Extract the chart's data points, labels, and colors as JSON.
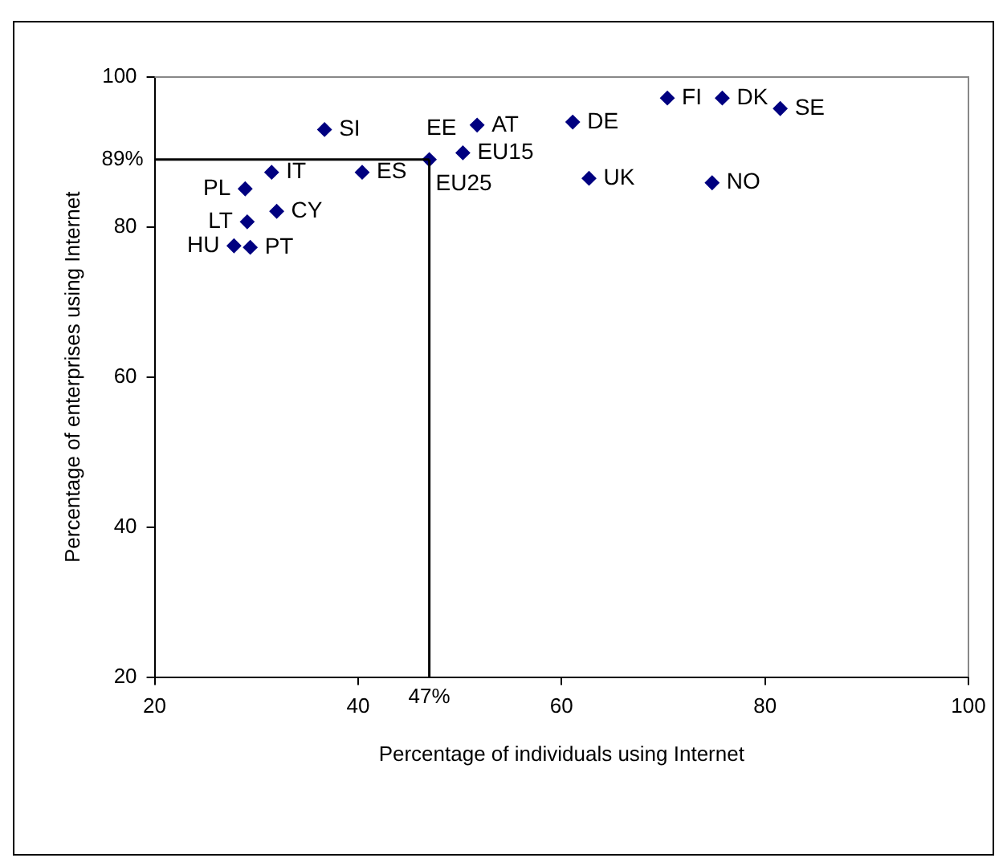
{
  "chart_data": {
    "type": "scatter",
    "xlabel": "Percentage of individuals using Internet",
    "ylabel": "Percentage of enterprises using Internet",
    "x": [
      36.7,
      51.7,
      61.1,
      70.4,
      75.8,
      81.5,
      47,
      50.3,
      62.7,
      74.8,
      31.5,
      40.4,
      28.9,
      32,
      29.1,
      27.8,
      29.4
    ],
    "series": [
      {
        "color": "#000080",
        "values": [
          93,
          93.6,
          94,
          97.2,
          97.2,
          95.8,
          89,
          89.9,
          86.5,
          85.9,
          87.3,
          87.3,
          85.1,
          82.1,
          80.7,
          77.5,
          77.3
        ]
      }
    ],
    "annotations": [
      {
        "text": "SI",
        "x": 36.7,
        "y": 93
      },
      {
        "text": "AT",
        "x": 51.7,
        "y": 93.6
      },
      {
        "text": "DE",
        "x": 61.1,
        "y": 94
      },
      {
        "text": "FI",
        "x": 70.4,
        "y": 97.2
      },
      {
        "text": "DK",
        "x": 75.8,
        "y": 97.2
      },
      {
        "text": "SE",
        "x": 81.5,
        "y": 95.8
      },
      {
        "text": "EU25",
        "x": 47,
        "y": 89
      },
      {
        "text": "EU15",
        "x": 50.3,
        "y": 89.9
      },
      {
        "text": "EE",
        "x": 50.3,
        "y": 89.9
      },
      {
        "text": "UK",
        "x": 62.7,
        "y": 86.5
      },
      {
        "text": "NO",
        "x": 74.8,
        "y": 85.9
      },
      {
        "text": "IT",
        "x": 31.5,
        "y": 87.3
      },
      {
        "text": "ES",
        "x": 40.4,
        "y": 87.3
      },
      {
        "text": "PL",
        "x": 28.9,
        "y": 85.1
      },
      {
        "text": "CY",
        "x": 32,
        "y": 82.1
      },
      {
        "text": "LT",
        "x": 29.1,
        "y": 80.7
      },
      {
        "text": "HU",
        "x": 27.8,
        "y": 77.5
      },
      {
        "text": "PT",
        "x": 29.4,
        "y": 77.3
      }
    ],
    "ref_lines": [
      {
        "axis": "x",
        "value": 47,
        "label": "47%",
        "color": "#000000"
      },
      {
        "axis": "y",
        "value": 89,
        "label": "89%",
        "color": "#000000"
      }
    ],
    "xlim": [
      20,
      100
    ],
    "ylim": [
      20,
      100
    ],
    "xticks": [
      20,
      40,
      60,
      80,
      100
    ],
    "yticks": [
      20,
      40,
      60,
      80,
      100
    ],
    "grid": false,
    "legend": false,
    "marker": "diamond"
  }
}
